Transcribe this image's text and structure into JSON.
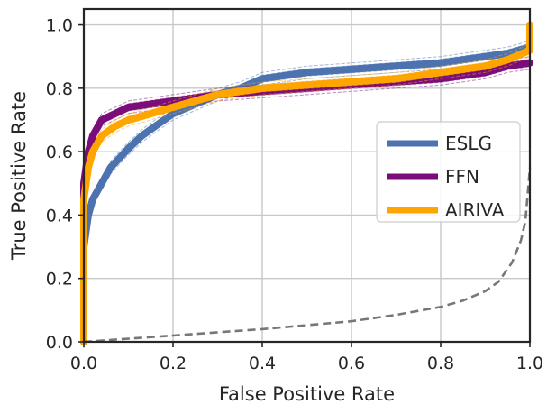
{
  "chart_data": {
    "type": "line",
    "title": "",
    "xlabel": "False Positive Rate",
    "ylabel": "True Positive Rate",
    "xlim": [
      0.0,
      1.0
    ],
    "ylim": [
      0.0,
      1.05
    ],
    "xticks": [
      "0.0",
      "0.2",
      "0.4",
      "0.6",
      "0.8",
      "1.0"
    ],
    "yticks": [
      "0.0",
      "0.2",
      "0.4",
      "0.6",
      "0.8",
      "1.0"
    ],
    "grid": true,
    "legend_position": "center-right",
    "series": [
      {
        "name": "ESLG",
        "color": "#4c72b0",
        "x": [
          0.0,
          0.0,
          0.005,
          0.01,
          0.02,
          0.04,
          0.06,
          0.08,
          0.1,
          0.13,
          0.16,
          0.2,
          0.25,
          0.3,
          0.35,
          0.4,
          0.5,
          0.6,
          0.7,
          0.8,
          0.9,
          0.95,
          1.0
        ],
        "y": [
          0.0,
          0.3,
          0.35,
          0.4,
          0.45,
          0.5,
          0.55,
          0.58,
          0.61,
          0.65,
          0.68,
          0.72,
          0.75,
          0.78,
          0.8,
          0.83,
          0.85,
          0.86,
          0.87,
          0.88,
          0.9,
          0.91,
          0.93
        ]
      },
      {
        "name": "FFN",
        "color": "#7b0d7b",
        "x": [
          0.0,
          0.0,
          0.005,
          0.01,
          0.02,
          0.04,
          0.07,
          0.1,
          0.15,
          0.2,
          0.3,
          0.4,
          0.5,
          0.6,
          0.7,
          0.8,
          0.9,
          0.95,
          1.0
        ],
        "y": [
          0.0,
          0.5,
          0.55,
          0.6,
          0.65,
          0.7,
          0.72,
          0.74,
          0.75,
          0.76,
          0.78,
          0.79,
          0.8,
          0.81,
          0.82,
          0.83,
          0.85,
          0.87,
          0.88
        ]
      },
      {
        "name": "AIRIVA",
        "color": "#ffa500",
        "x": [
          0.0,
          0.0,
          0.005,
          0.01,
          0.02,
          0.04,
          0.07,
          0.1,
          0.15,
          0.2,
          0.3,
          0.4,
          0.5,
          0.6,
          0.7,
          0.8,
          0.9,
          0.95,
          1.0,
          1.0
        ],
        "y": [
          0.0,
          0.45,
          0.5,
          0.55,
          0.6,
          0.65,
          0.68,
          0.7,
          0.72,
          0.74,
          0.78,
          0.8,
          0.81,
          0.82,
          0.83,
          0.85,
          0.87,
          0.89,
          0.92,
          1.0
        ]
      },
      {
        "name": "",
        "color": "#777777",
        "dashed": true,
        "x": [
          0.0,
          0.2,
          0.4,
          0.6,
          0.7,
          0.8,
          0.85,
          0.9,
          0.93,
          0.96,
          0.98,
          0.99,
          1.0
        ],
        "y": [
          0.0,
          0.02,
          0.04,
          0.065,
          0.085,
          0.11,
          0.13,
          0.16,
          0.19,
          0.25,
          0.32,
          0.38,
          0.55
        ]
      }
    ]
  }
}
